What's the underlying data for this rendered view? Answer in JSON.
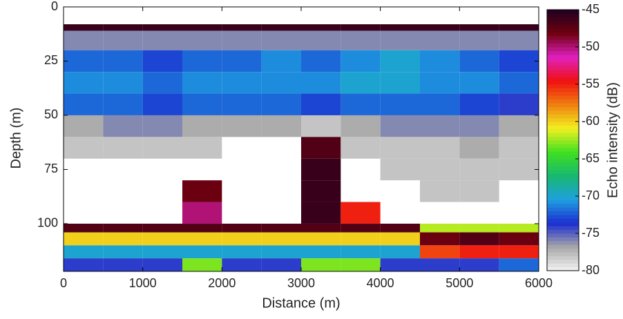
{
  "chart_data": {
    "type": "heatmap",
    "x_label": "Distance (m)",
    "y_label": "Depth (m)",
    "colorbar_label": "Echo intensity (dB)",
    "x_bins": [
      0,
      500,
      1000,
      1500,
      2000,
      2500,
      3000,
      3500,
      4000,
      4500,
      5000,
      5500,
      6000
    ],
    "y_bins": [
      0,
      8,
      11,
      20,
      30,
      40,
      50,
      60,
      70,
      80,
      90,
      100,
      104,
      110,
      116,
      122
    ],
    "z": [
      [
        null,
        null,
        null,
        null,
        null,
        null,
        null,
        null,
        null,
        null,
        null,
        null
      ],
      [
        -46,
        -46,
        -46,
        -46,
        -46,
        -46,
        -46,
        -46,
        -46,
        -46,
        -46,
        -46
      ],
      [
        -76,
        -76,
        -76,
        -76,
        -76,
        -76,
        -76,
        -76,
        -76,
        -76,
        -76,
        -76
      ],
      [
        -72,
        -72,
        -73,
        -72,
        -72,
        -71,
        -72,
        -71,
        -70,
        -71,
        -72,
        -73
      ],
      [
        -71,
        -71,
        -72,
        -71,
        -71,
        -71,
        -71,
        -70,
        -70,
        -71,
        -71,
        -72
      ],
      [
        -72,
        -72,
        -73,
        -72,
        -72,
        -72,
        -73,
        -72,
        -72,
        -72,
        -73,
        -74
      ],
      [
        -77,
        -76,
        -76,
        -77,
        -77,
        -77,
        -78,
        -77,
        -76,
        -76,
        -76,
        -77
      ],
      [
        -78,
        -78,
        -78,
        -78,
        null,
        null,
        -47,
        -78,
        -78,
        -78,
        -77,
        -78
      ],
      [
        null,
        null,
        null,
        null,
        null,
        null,
        -46,
        null,
        -78,
        -78,
        -78,
        -78
      ],
      [
        null,
        null,
        null,
        -48,
        null,
        null,
        -46,
        null,
        null,
        -78,
        -78,
        null
      ],
      [
        null,
        null,
        null,
        -50,
        null,
        null,
        -46,
        -55,
        null,
        null,
        null,
        null
      ],
      [
        -47,
        -47,
        -47,
        -47,
        -47,
        -47,
        -47,
        -47,
        -47,
        -62,
        -62,
        -62
      ],
      [
        -60,
        -60,
        -60,
        -60,
        -60,
        -60,
        -60,
        -60,
        -60,
        -48,
        -47,
        -48
      ],
      [
        -70,
        -70,
        -70,
        -70,
        -70,
        -70,
        -70,
        -70,
        -70,
        -56,
        -55,
        -55
      ],
      [
        -74,
        -74,
        -74,
        -63,
        -74,
        -74,
        -63,
        -63,
        -74,
        -74,
        -74,
        -72
      ]
    ],
    "colormap": [
      "#f4f4f4",
      "#a8a8a8",
      "#1c2ed0",
      "#1e9fe0",
      "#18b870",
      "#40e020",
      "#f2f020",
      "#f08010",
      "#f01010",
      "#e020c0",
      "#700010",
      "#200020"
    ],
    "clim": [
      -80,
      -45
    ],
    "cticks": [
      -80,
      -75,
      -70,
      -65,
      -60,
      -55,
      -50,
      -45
    ],
    "xlim": [
      0,
      6000
    ],
    "xticks": [
      0,
      1000,
      2000,
      3000,
      4000,
      5000,
      6000
    ],
    "ylim": [
      0,
      122
    ],
    "yticks": [
      0,
      25,
      50,
      75,
      100
    ],
    "y_inverted": true
  }
}
